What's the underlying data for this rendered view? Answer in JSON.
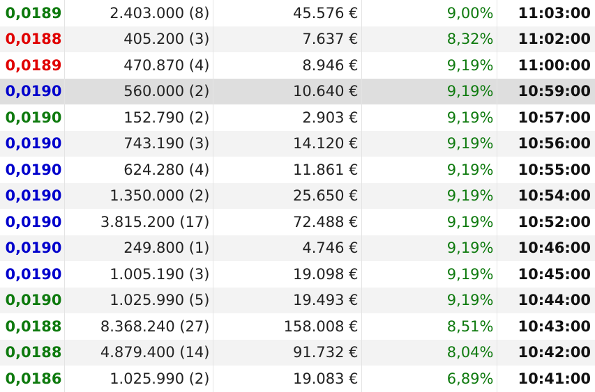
{
  "colors": {
    "up": "#0e7a0e",
    "down": "#e00000",
    "unchanged": "#0000cc",
    "percent": "#0e7a0e"
  },
  "trades": [
    {
      "price": "0,0189",
      "direction": "up",
      "volume": "2.403.000 (8)",
      "turnover": "45.576 €",
      "change_pct": "9,00%",
      "time": "11:03:00"
    },
    {
      "price": "0,0188",
      "direction": "down",
      "volume": "405.200 (3)",
      "turnover": "7.637 €",
      "change_pct": "8,32%",
      "time": "11:02:00"
    },
    {
      "price": "0,0189",
      "direction": "down",
      "volume": "470.870 (4)",
      "turnover": "8.946 €",
      "change_pct": "9,19%",
      "time": "11:00:00"
    },
    {
      "price": "0,0190",
      "direction": "unchanged",
      "volume": "560.000 (2)",
      "turnover": "10.640 €",
      "change_pct": "9,19%",
      "time": "10:59:00",
      "highlighted": true
    },
    {
      "price": "0,0190",
      "direction": "up",
      "volume": "152.790 (2)",
      "turnover": "2.903 €",
      "change_pct": "9,19%",
      "time": "10:57:00"
    },
    {
      "price": "0,0190",
      "direction": "unchanged",
      "volume": "743.190 (3)",
      "turnover": "14.120 €",
      "change_pct": "9,19%",
      "time": "10:56:00"
    },
    {
      "price": "0,0190",
      "direction": "unchanged",
      "volume": "624.280 (4)",
      "turnover": "11.861 €",
      "change_pct": "9,19%",
      "time": "10:55:00"
    },
    {
      "price": "0,0190",
      "direction": "unchanged",
      "volume": "1.350.000 (2)",
      "turnover": "25.650 €",
      "change_pct": "9,19%",
      "time": "10:54:00"
    },
    {
      "price": "0,0190",
      "direction": "unchanged",
      "volume": "3.815.200 (17)",
      "turnover": "72.488 €",
      "change_pct": "9,19%",
      "time": "10:52:00"
    },
    {
      "price": "0,0190",
      "direction": "unchanged",
      "volume": "249.800 (1)",
      "turnover": "4.746 €",
      "change_pct": "9,19%",
      "time": "10:46:00"
    },
    {
      "price": "0,0190",
      "direction": "unchanged",
      "volume": "1.005.190 (3)",
      "turnover": "19.098 €",
      "change_pct": "9,19%",
      "time": "10:45:00"
    },
    {
      "price": "0,0190",
      "direction": "up",
      "volume": "1.025.990 (5)",
      "turnover": "19.493 €",
      "change_pct": "9,19%",
      "time": "10:44:00"
    },
    {
      "price": "0,0188",
      "direction": "up",
      "volume": "8.368.240 (27)",
      "turnover": "158.008 €",
      "change_pct": "8,51%",
      "time": "10:43:00"
    },
    {
      "price": "0,0188",
      "direction": "up",
      "volume": "4.879.400 (14)",
      "turnover": "91.732 €",
      "change_pct": "8,04%",
      "time": "10:42:00"
    },
    {
      "price": "0,0186",
      "direction": "up",
      "volume": "1.025.990 (2)",
      "turnover": "19.083 €",
      "change_pct": "6,89%",
      "time": "10:41:00"
    }
  ]
}
